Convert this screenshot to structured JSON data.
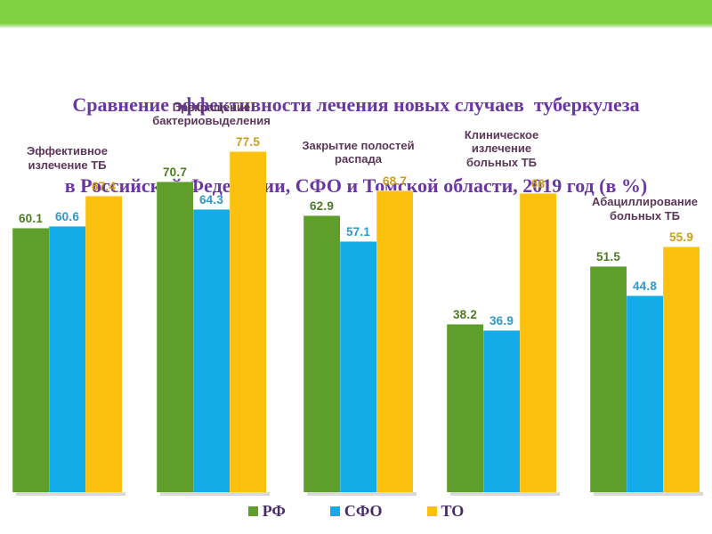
{
  "page": {
    "title_line1": "Сравнение эффективности лечения новых случаев  туберкулеза",
    "title_line2": "в Российской Федерации, СФО и Томской области, 2019 год (в %)"
  },
  "theme": {
    "top_band_color": "#80D142",
    "background_color": "#FFFFFF",
    "title_color": "#6936A3",
    "category_label_color": "#5C3759",
    "legend_text_color": "#472C66"
  },
  "chart_data": {
    "type": "bar",
    "title": "Сравнение эффективности лечения новых случаев туберкулеза в Российской Федерации, СФО и Томской области, 2019 год (в %)",
    "categories": [
      "Эффективное излечение ТБ",
      "Прекращение бактериовыделения",
      "Закрытие полостей распада",
      "Клиническое излечение больных ТБ",
      "Абациллирование больных ТБ"
    ],
    "series": [
      {
        "name": "РФ",
        "color": "#5F9E2B",
        "value_label_color": "#4D7A23",
        "values": [
          60.1,
          70.7,
          62.9,
          38.2,
          51.5
        ]
      },
      {
        "name": "СФО",
        "color": "#12ACE8",
        "value_label_color": "#2E97CE",
        "values": [
          60.6,
          64.3,
          57.1,
          36.9,
          44.8
        ]
      },
      {
        "name": "ТО",
        "color": "#FCC00F",
        "value_label_color": "#CE9E1C",
        "values": [
          67.4,
          77.5,
          68.7,
          68,
          55.9
        ]
      }
    ],
    "ylim": [
      0,
      85
    ],
    "value_labels": true,
    "legend_position": "bottom",
    "grid": false,
    "axes_visible": false
  }
}
